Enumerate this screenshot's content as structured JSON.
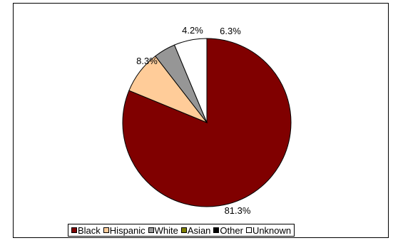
{
  "chart_data": {
    "type": "pie",
    "title": "",
    "categories": [
      "Black",
      "Hispanic",
      "White",
      "Asian",
      "Other",
      "Unknown"
    ],
    "values": [
      81.3,
      8.3,
      4.2,
      0.0,
      0.0,
      6.3
    ],
    "data_labels": [
      "81.3%",
      "8.3%",
      "4.2%",
      "",
      "",
      "6.3%"
    ],
    "colors": [
      "#800000",
      "#FFCC99",
      "#969696",
      "#808000",
      "#000000",
      "#FFFFFF"
    ],
    "start_angle_deg": 90,
    "direction": "clockwise",
    "legend": {
      "placement": "bottom"
    }
  }
}
